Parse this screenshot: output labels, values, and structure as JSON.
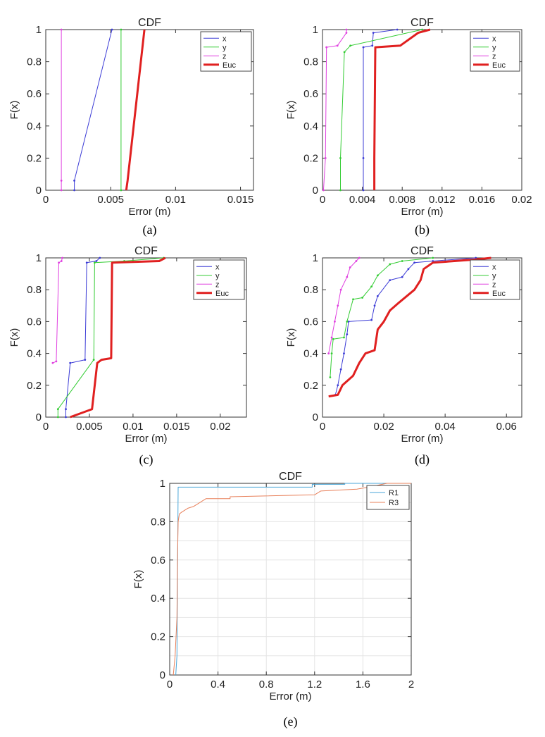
{
  "chart_data": [
    {
      "id": "a",
      "type": "line",
      "caption": "(a)",
      "title": "CDF",
      "xlabel": "Error (m)",
      "ylabel": "F(x)",
      "xlim": [
        0,
        0.016
      ],
      "ylim": [
        0,
        1
      ],
      "xticks": [
        0,
        0.005,
        0.01,
        0.015
      ],
      "xtick_labels": [
        "0",
        "0.005",
        "0.01",
        "0.015"
      ],
      "yticks": [
        0,
        0.2,
        0.4,
        0.6,
        0.8,
        1
      ],
      "ytick_labels": [
        "0",
        "0.2",
        "0.4",
        "0.6",
        "0.8",
        "1"
      ],
      "grid": false,
      "legend": "top-right",
      "series": [
        {
          "name": "x",
          "color": "#3b3bd6",
          "width": 1,
          "points": [
            [
              0.0022,
              0
            ],
            [
              0.0022,
              0.06
            ],
            [
              0.0051,
              1
            ]
          ]
        },
        {
          "name": "y",
          "color": "#33cc33",
          "width": 1,
          "points": [
            [
              0.0058,
              0
            ],
            [
              0.0058,
              1
            ]
          ]
        },
        {
          "name": "z",
          "color": "#e040e0",
          "width": 1,
          "points": [
            [
              0.0012,
              0
            ],
            [
              0.0012,
              0.06
            ],
            [
              0.0012,
              1
            ]
          ]
        },
        {
          "name": "Euc",
          "color": "#e02020",
          "width": 3,
          "points": [
            [
              0.0062,
              0
            ],
            [
              0.0063,
              0.06
            ],
            [
              0.0076,
              1
            ]
          ]
        }
      ]
    },
    {
      "id": "b",
      "type": "line",
      "caption": "(b)",
      "title": "CDF",
      "xlabel": "Error (m)",
      "ylabel": "F(x)",
      "xlim": [
        0,
        0.02
      ],
      "ylim": [
        0,
        1
      ],
      "xticks": [
        0,
        0.004,
        0.008,
        0.012,
        0.016,
        0.02
      ],
      "xtick_labels": [
        "0",
        "0.004",
        "0.008",
        "0.012",
        "0.016",
        "0.02"
      ],
      "yticks": [
        0,
        0.2,
        0.4,
        0.6,
        0.8,
        1
      ],
      "ytick_labels": [
        "0",
        "0.2",
        "0.4",
        "0.6",
        "0.8",
        "1"
      ],
      "grid": false,
      "legend": "top-right",
      "series": [
        {
          "name": "x",
          "color": "#3b3bd6",
          "width": 1,
          "points": [
            [
              0.0041,
              0
            ],
            [
              0.0041,
              0.2
            ],
            [
              0.0041,
              0.89
            ],
            [
              0.005,
              0.9
            ],
            [
              0.0051,
              0.98
            ],
            [
              0.0075,
              1
            ]
          ]
        },
        {
          "name": "y",
          "color": "#33cc33",
          "width": 1,
          "points": [
            [
              0.0018,
              0
            ],
            [
              0.0018,
              0.2
            ],
            [
              0.0022,
              0.86
            ],
            [
              0.0028,
              0.9
            ],
            [
              0.01,
              1
            ]
          ]
        },
        {
          "name": "z",
          "color": "#e040e0",
          "width": 1,
          "points": [
            [
              0.0001,
              0
            ],
            [
              0.0003,
              0.2
            ],
            [
              0.0004,
              0.89
            ],
            [
              0.0015,
              0.9
            ],
            [
              0.0024,
              0.98
            ],
            [
              0.0024,
              1
            ]
          ]
        },
        {
          "name": "Euc",
          "color": "#e02020",
          "width": 3,
          "points": [
            [
              0.0052,
              0
            ],
            [
              0.0052,
              0.2
            ],
            [
              0.0053,
              0.89
            ],
            [
              0.0078,
              0.9
            ],
            [
              0.0096,
              0.98
            ],
            [
              0.0108,
              1
            ]
          ]
        }
      ]
    },
    {
      "id": "c",
      "type": "line",
      "caption": "(c)",
      "title": "CDF",
      "xlabel": "Error (m)",
      "ylabel": "F(x)",
      "xlim": [
        0,
        0.023
      ],
      "ylim": [
        0,
        1
      ],
      "xticks": [
        0,
        0.005,
        0.01,
        0.015,
        0.02
      ],
      "xtick_labels": [
        "0",
        "0.005",
        "0.01",
        "0.015",
        "0.02"
      ],
      "yticks": [
        0,
        0.2,
        0.4,
        0.6,
        0.8,
        1
      ],
      "ytick_labels": [
        "0",
        "0.2",
        "0.4",
        "0.6",
        "0.8",
        "1"
      ],
      "grid": false,
      "legend": "top-right",
      "series": [
        {
          "name": "x",
          "color": "#3b3bd6",
          "width": 1,
          "points": [
            [
              0.0023,
              0
            ],
            [
              0.0023,
              0.05
            ],
            [
              0.0028,
              0.34
            ],
            [
              0.0045,
              0.36
            ],
            [
              0.0047,
              0.97
            ],
            [
              0.0058,
              0.98
            ],
            [
              0.0062,
              1
            ]
          ]
        },
        {
          "name": "y",
          "color": "#33cc33",
          "width": 1,
          "points": [
            [
              0.0014,
              0
            ],
            [
              0.0014,
              0.05
            ],
            [
              0.0055,
              0.36
            ],
            [
              0.0056,
              0.97
            ],
            [
              0.009,
              0.98
            ],
            [
              0.0135,
              1
            ]
          ]
        },
        {
          "name": "z",
          "color": "#e040e0",
          "width": 1,
          "points": [
            [
              0.0008,
              0.34
            ],
            [
              0.0012,
              0.35
            ],
            [
              0.0015,
              0.97
            ],
            [
              0.0018,
              0.98
            ],
            [
              0.0019,
              1
            ]
          ]
        },
        {
          "name": "Euc",
          "color": "#e02020",
          "width": 3,
          "points": [
            [
              0.0028,
              0
            ],
            [
              0.0053,
              0.05
            ],
            [
              0.0059,
              0.34
            ],
            [
              0.0064,
              0.36
            ],
            [
              0.0075,
              0.37
            ],
            [
              0.0076,
              0.97
            ],
            [
              0.013,
              0.98
            ],
            [
              0.0137,
              1
            ]
          ]
        }
      ]
    },
    {
      "id": "d",
      "type": "line",
      "caption": "(d)",
      "title": "CDF",
      "xlabel": "Error (m)",
      "ylabel": "F(x)",
      "xlim": [
        0,
        0.065
      ],
      "ylim": [
        0,
        1
      ],
      "xticks": [
        0,
        0.02,
        0.04,
        0.06
      ],
      "xtick_labels": [
        "0",
        "0.02",
        "0.04",
        "0.06"
      ],
      "yticks": [
        0,
        0.2,
        0.4,
        0.6,
        0.8,
        1
      ],
      "ytick_labels": [
        "0",
        "0.2",
        "0.4",
        "0.6",
        "0.8",
        "1"
      ],
      "grid": false,
      "legend": "top-right",
      "series": [
        {
          "name": "x",
          "color": "#3b3bd6",
          "width": 1,
          "points": [
            [
              0.0042,
              0.14
            ],
            [
              0.005,
              0.2
            ],
            [
              0.006,
              0.3
            ],
            [
              0.007,
              0.4
            ],
            [
              0.008,
              0.52
            ],
            [
              0.0085,
              0.6
            ],
            [
              0.016,
              0.61
            ],
            [
              0.017,
              0.7
            ],
            [
              0.018,
              0.76
            ],
            [
              0.022,
              0.86
            ],
            [
              0.026,
              0.88
            ],
            [
              0.028,
              0.93
            ],
            [
              0.03,
              0.97
            ],
            [
              0.036,
              0.98
            ],
            [
              0.05,
              1
            ]
          ]
        },
        {
          "name": "y",
          "color": "#33cc33",
          "width": 1,
          "points": [
            [
              0.0025,
              0.25
            ],
            [
              0.003,
              0.4
            ],
            [
              0.0035,
              0.49
            ],
            [
              0.007,
              0.5
            ],
            [
              0.008,
              0.6
            ],
            [
              0.01,
              0.74
            ],
            [
              0.013,
              0.75
            ],
            [
              0.016,
              0.82
            ],
            [
              0.018,
              0.89
            ],
            [
              0.022,
              0.96
            ],
            [
              0.026,
              0.98
            ],
            [
              0.036,
              1
            ]
          ]
        },
        {
          "name": "z",
          "color": "#e040e0",
          "width": 1,
          "points": [
            [
              0.002,
              0.4
            ],
            [
              0.003,
              0.5
            ],
            [
              0.004,
              0.6
            ],
            [
              0.005,
              0.7
            ],
            [
              0.006,
              0.8
            ],
            [
              0.008,
              0.88
            ],
            [
              0.009,
              0.94
            ],
            [
              0.011,
              0.98
            ],
            [
              0.012,
              1
            ]
          ]
        },
        {
          "name": "Euc",
          "color": "#e02020",
          "width": 3,
          "points": [
            [
              0.002,
              0.13
            ],
            [
              0.005,
              0.14
            ],
            [
              0.0065,
              0.2
            ],
            [
              0.01,
              0.26
            ],
            [
              0.012,
              0.34
            ],
            [
              0.014,
              0.4
            ],
            [
              0.017,
              0.42
            ],
            [
              0.018,
              0.55
            ],
            [
              0.02,
              0.6
            ],
            [
              0.022,
              0.67
            ],
            [
              0.025,
              0.72
            ],
            [
              0.03,
              0.8
            ],
            [
              0.032,
              0.86
            ],
            [
              0.033,
              0.93
            ],
            [
              0.036,
              0.97
            ],
            [
              0.05,
              0.99
            ],
            [
              0.055,
              1
            ]
          ]
        }
      ]
    },
    {
      "id": "e",
      "type": "line",
      "caption": "(e)",
      "title": "CDF",
      "xlabel": "Error (m)",
      "ylabel": "F(x)",
      "xlim": [
        0,
        2
      ],
      "ylim": [
        0,
        1
      ],
      "xticks": [
        0,
        0.4,
        0.8,
        1.2,
        1.6,
        2
      ],
      "xtick_labels": [
        "0",
        "0.4",
        "0.8",
        "1.2",
        "1.6",
        "2"
      ],
      "yticks": [
        0,
        0.2,
        0.4,
        0.6,
        0.8,
        1
      ],
      "ytick_labels": [
        "0",
        "0.2",
        "0.4",
        "0.6",
        "0.8",
        "1"
      ],
      "grid": true,
      "legend": "top-right",
      "series": [
        {
          "name": "R1",
          "color": "#4aa6d8",
          "width": 1,
          "points": [
            [
              0.05,
              0
            ],
            [
              0.06,
              0.1
            ],
            [
              0.07,
              0.98
            ],
            [
              1.18,
              0.98
            ],
            [
              1.18,
              0.995
            ],
            [
              1.45,
              0.995
            ],
            [
              1.45,
              1
            ],
            [
              2,
              1
            ]
          ]
        },
        {
          "name": "R3",
          "color": "#e8805a",
          "width": 1,
          "points": [
            [
              0.03,
              0
            ],
            [
              0.045,
              0.1
            ],
            [
              0.06,
              0.3
            ],
            [
              0.065,
              0.6
            ],
            [
              0.07,
              0.8
            ],
            [
              0.08,
              0.84
            ],
            [
              0.1,
              0.85
            ],
            [
              0.15,
              0.87
            ],
            [
              0.2,
              0.88
            ],
            [
              0.25,
              0.9
            ],
            [
              0.3,
              0.92
            ],
            [
              0.5,
              0.92
            ],
            [
              0.5,
              0.93
            ],
            [
              1.2,
              0.94
            ],
            [
              1.25,
              0.96
            ],
            [
              1.55,
              0.97
            ],
            [
              1.65,
              0.98
            ],
            [
              1.72,
              0.99
            ],
            [
              1.8,
              1
            ],
            [
              2,
              1
            ]
          ]
        }
      ]
    }
  ]
}
